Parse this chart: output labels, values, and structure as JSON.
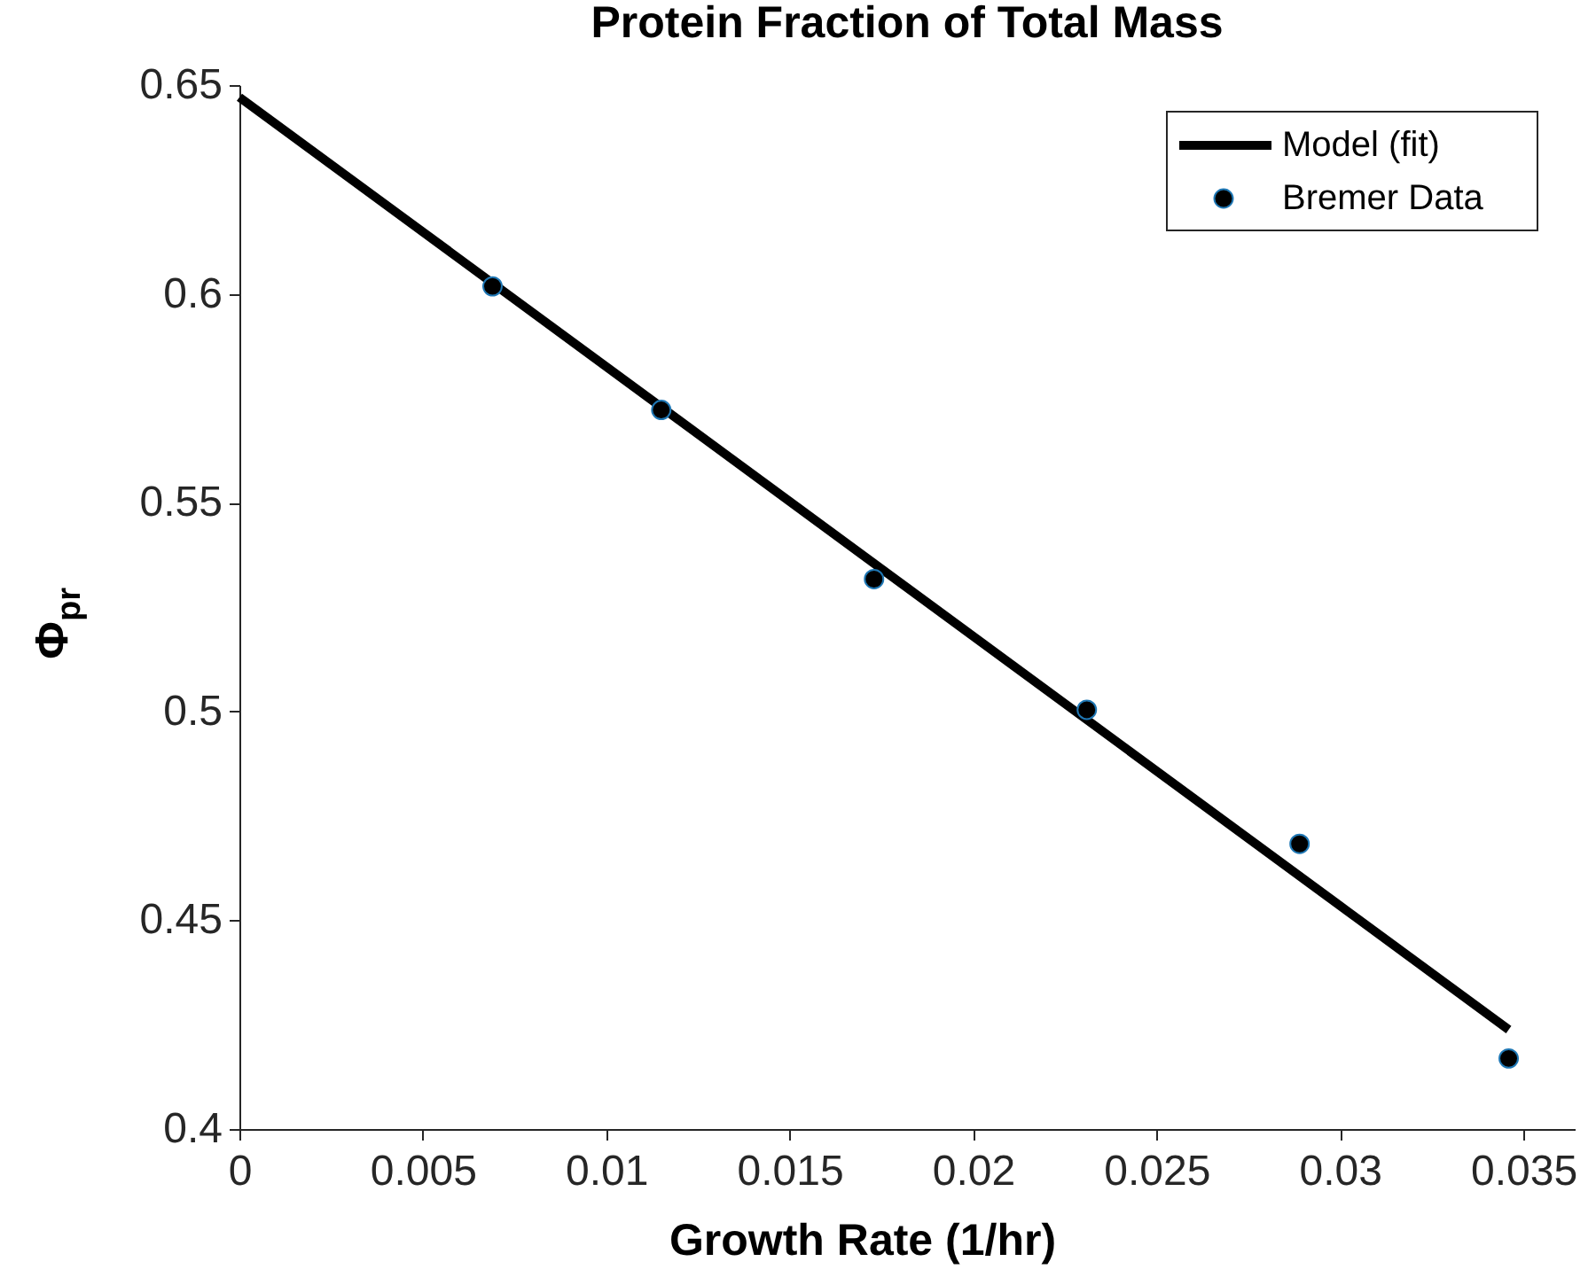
{
  "chart_data": {
    "type": "line",
    "title": "Protein Fraction of Total Mass",
    "xlabel": "Growth Rate (1/hr)",
    "ylabel": "Φ$_{pr}$",
    "series": [
      {
        "name": "Model (fit)",
        "color": "#000000",
        "x": [
          0,
          0.0346
        ],
        "values": [
          0.6471,
          0.4238
        ]
      },
      {
        "name": "Bremer Data",
        "type": "scatter",
        "marker": "circle",
        "color": "#000000",
        "x": [
          0.0069,
          0.0115,
          0.0173,
          0.0231,
          0.0289,
          0.0346
        ],
        "values": [
          0.6018,
          0.5722,
          0.5317,
          0.5004,
          0.4683,
          0.4169
        ]
      }
    ],
    "xlim": [
      0,
      0.0364
    ],
    "xticks": [
      0,
      0.005,
      0.01,
      0.015,
      0.02,
      0.025,
      0.03,
      0.035
    ],
    "ylim": [
      0.4,
      0.65
    ],
    "yticks": [
      0.4,
      0.45,
      0.5,
      0.55,
      0.6,
      0.65
    ],
    "grid": false,
    "legend": "top right"
  }
}
